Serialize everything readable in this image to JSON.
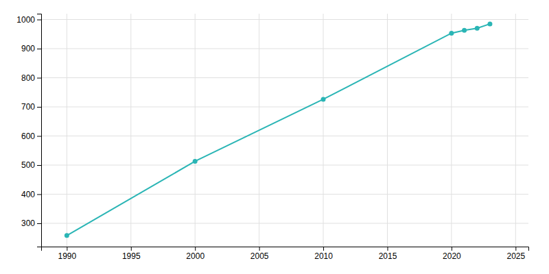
{
  "chart_data": {
    "type": "line",
    "x": [
      1990,
      2000,
      2010,
      2020,
      2021,
      2022,
      2023
    ],
    "values": [
      258,
      513,
      726,
      953,
      963,
      970,
      985
    ],
    "color": "#2ab5b5",
    "marker": "circle",
    "xlim": [
      1988,
      2026
    ],
    "ylim": [
      220,
      1020
    ],
    "xticks": [
      1990,
      1995,
      2000,
      2005,
      2010,
      2015,
      2020,
      2025
    ],
    "yticks": [
      300,
      400,
      500,
      600,
      700,
      800,
      900,
      1000
    ],
    "grid": true
  }
}
